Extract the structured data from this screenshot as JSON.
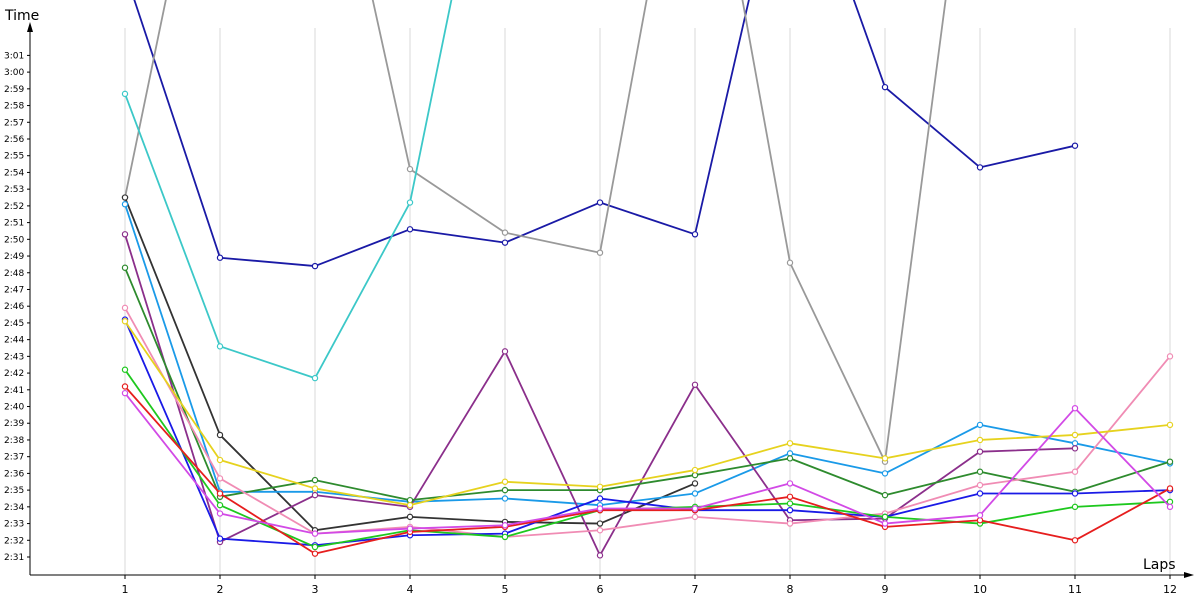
{
  "chart_data": {
    "type": "line",
    "xlabel": "Laps",
    "ylabel": "Time",
    "x": [
      1,
      2,
      3,
      4,
      5,
      6,
      7,
      8,
      9,
      10,
      11,
      12
    ],
    "x_ticks": [
      "1",
      "2",
      "3",
      "4",
      "5",
      "6",
      "7",
      "8",
      "9",
      "10",
      "11",
      "12"
    ],
    "y_ticks": [
      "2:31",
      "2:32",
      "2:33",
      "2:34",
      "2:35",
      "2:36",
      "2:37",
      "2:38",
      "2:39",
      "2:40",
      "2:41",
      "2:42",
      "2:43",
      "2:44",
      "2:45",
      "2:46",
      "2:47",
      "2:48",
      "2:49",
      "2:50",
      "2:51",
      "2:52",
      "2:53",
      "2:54",
      "2:55",
      "2:56",
      "2:57",
      "2:58",
      "2:59",
      "3:00",
      "3:01"
    ],
    "y_range_seconds": [
      149,
      182
    ],
    "grid": "vertical",
    "series": [
      {
        "color": "#1a1aa6",
        "values": [
          186,
          168.9,
          168.4,
          170.6,
          169.8,
          172.2,
          170.3,
          195,
          179.1,
          174.3,
          175.6,
          null
        ]
      },
      {
        "color": "#999999",
        "values": [
          172.5,
          200,
          200,
          174.2,
          170.4,
          169.2,
          200,
          168.6,
          156.7,
          200,
          null,
          null
        ]
      },
      {
        "color": "#3cc8c8",
        "values": [
          178.7,
          163.6,
          161.7,
          172.2,
          200,
          null,
          null,
          null,
          null,
          null,
          null,
          null
        ]
      },
      {
        "color": "#333333",
        "values": [
          172.5,
          158.3,
          152.6,
          153.4,
          153.1,
          153.0,
          155.4,
          null,
          null,
          null,
          null,
          null
        ]
      },
      {
        "color": "#1a9ae8",
        "values": [
          172.1,
          154.9,
          154.9,
          154.3,
          154.5,
          154.1,
          154.8,
          157.2,
          156.0,
          158.9,
          157.8,
          156.6
        ]
      },
      {
        "color": "#8b2f8b",
        "values": [
          170.3,
          151.9,
          154.7,
          154.0,
          163.3,
          151.1,
          161.3,
          153.2,
          153.3,
          157.3,
          157.5,
          null
        ]
      },
      {
        "color": "#2e8b2e",
        "values": [
          168.3,
          154.6,
          155.6,
          154.4,
          155.0,
          155.0,
          155.9,
          156.9,
          154.7,
          156.1,
          154.9,
          156.7
        ]
      },
      {
        "color": "#f08cb4",
        "values": [
          165.9,
          155.7,
          152.4,
          152.8,
          152.2,
          152.6,
          153.4,
          153.0,
          153.6,
          155.3,
          156.1,
          163.0
        ]
      },
      {
        "color": "#1a1ae6",
        "values": [
          165.2,
          152.1,
          151.7,
          152.3,
          152.4,
          154.5,
          153.8,
          153.8,
          153.4,
          154.8,
          154.8,
          155.0
        ]
      },
      {
        "color": "#e6d21e",
        "values": [
          165.1,
          156.8,
          155.1,
          154.1,
          155.5,
          155.2,
          156.2,
          157.8,
          156.9,
          158.0,
          158.3,
          158.9
        ]
      },
      {
        "color": "#1ec81e",
        "values": [
          162.2,
          154.1,
          151.6,
          152.6,
          152.2,
          153.8,
          154.0,
          154.2,
          153.4,
          153.0,
          154.0,
          154.3
        ]
      },
      {
        "color": "#e61e1e",
        "values": [
          161.2,
          154.8,
          151.2,
          152.5,
          152.8,
          153.8,
          153.8,
          154.6,
          152.8,
          153.2,
          152.0,
          155.1
        ]
      },
      {
        "color": "#d24ae6",
        "values": [
          160.8,
          153.6,
          152.4,
          152.7,
          152.9,
          153.9,
          153.9,
          155.4,
          153.0,
          153.5,
          159.9,
          154.0
        ]
      }
    ]
  }
}
